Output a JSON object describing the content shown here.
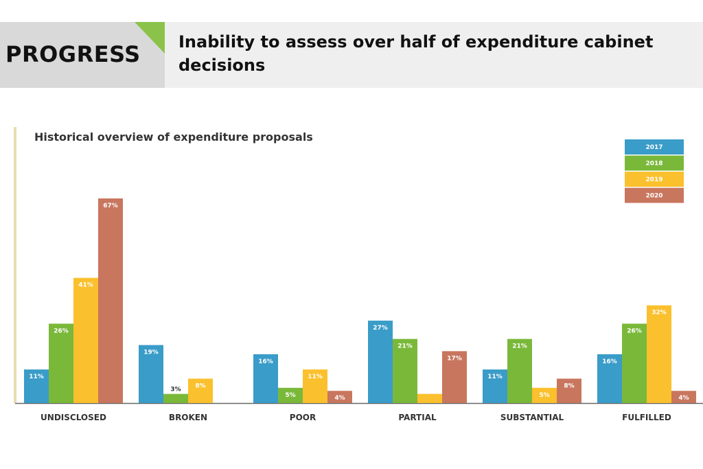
{
  "header": {
    "tag": "PROGRESS",
    "headline": "Inability to assess over half of expenditure cabinet decisions",
    "accent": "#8bc34a"
  },
  "chart_data": {
    "type": "bar",
    "title": "Historical overview of expenditure proposals",
    "categories": [
      "UNDISCLOSED",
      "BROKEN",
      "POOR",
      "PARTIAL",
      "SUBSTANTIAL",
      "FULFILLED"
    ],
    "series": [
      {
        "name": "2017",
        "color": "#3a9cc8",
        "values": [
          11,
          19,
          16,
          27,
          11,
          16
        ]
      },
      {
        "name": "2018",
        "color": "#7ab83a",
        "values": [
          26,
          3,
          5,
          21,
          21,
          26
        ]
      },
      {
        "name": "2019",
        "color": "#fbc02d",
        "values": [
          41,
          8,
          11,
          3,
          5,
          32
        ]
      },
      {
        "name": "2020",
        "color": "#c8765e",
        "values": [
          67,
          null,
          4,
          17,
          8,
          4
        ]
      }
    ],
    "unit": "%",
    "ylim": [
      0,
      67
    ],
    "grid": false,
    "legend": "top-right"
  }
}
